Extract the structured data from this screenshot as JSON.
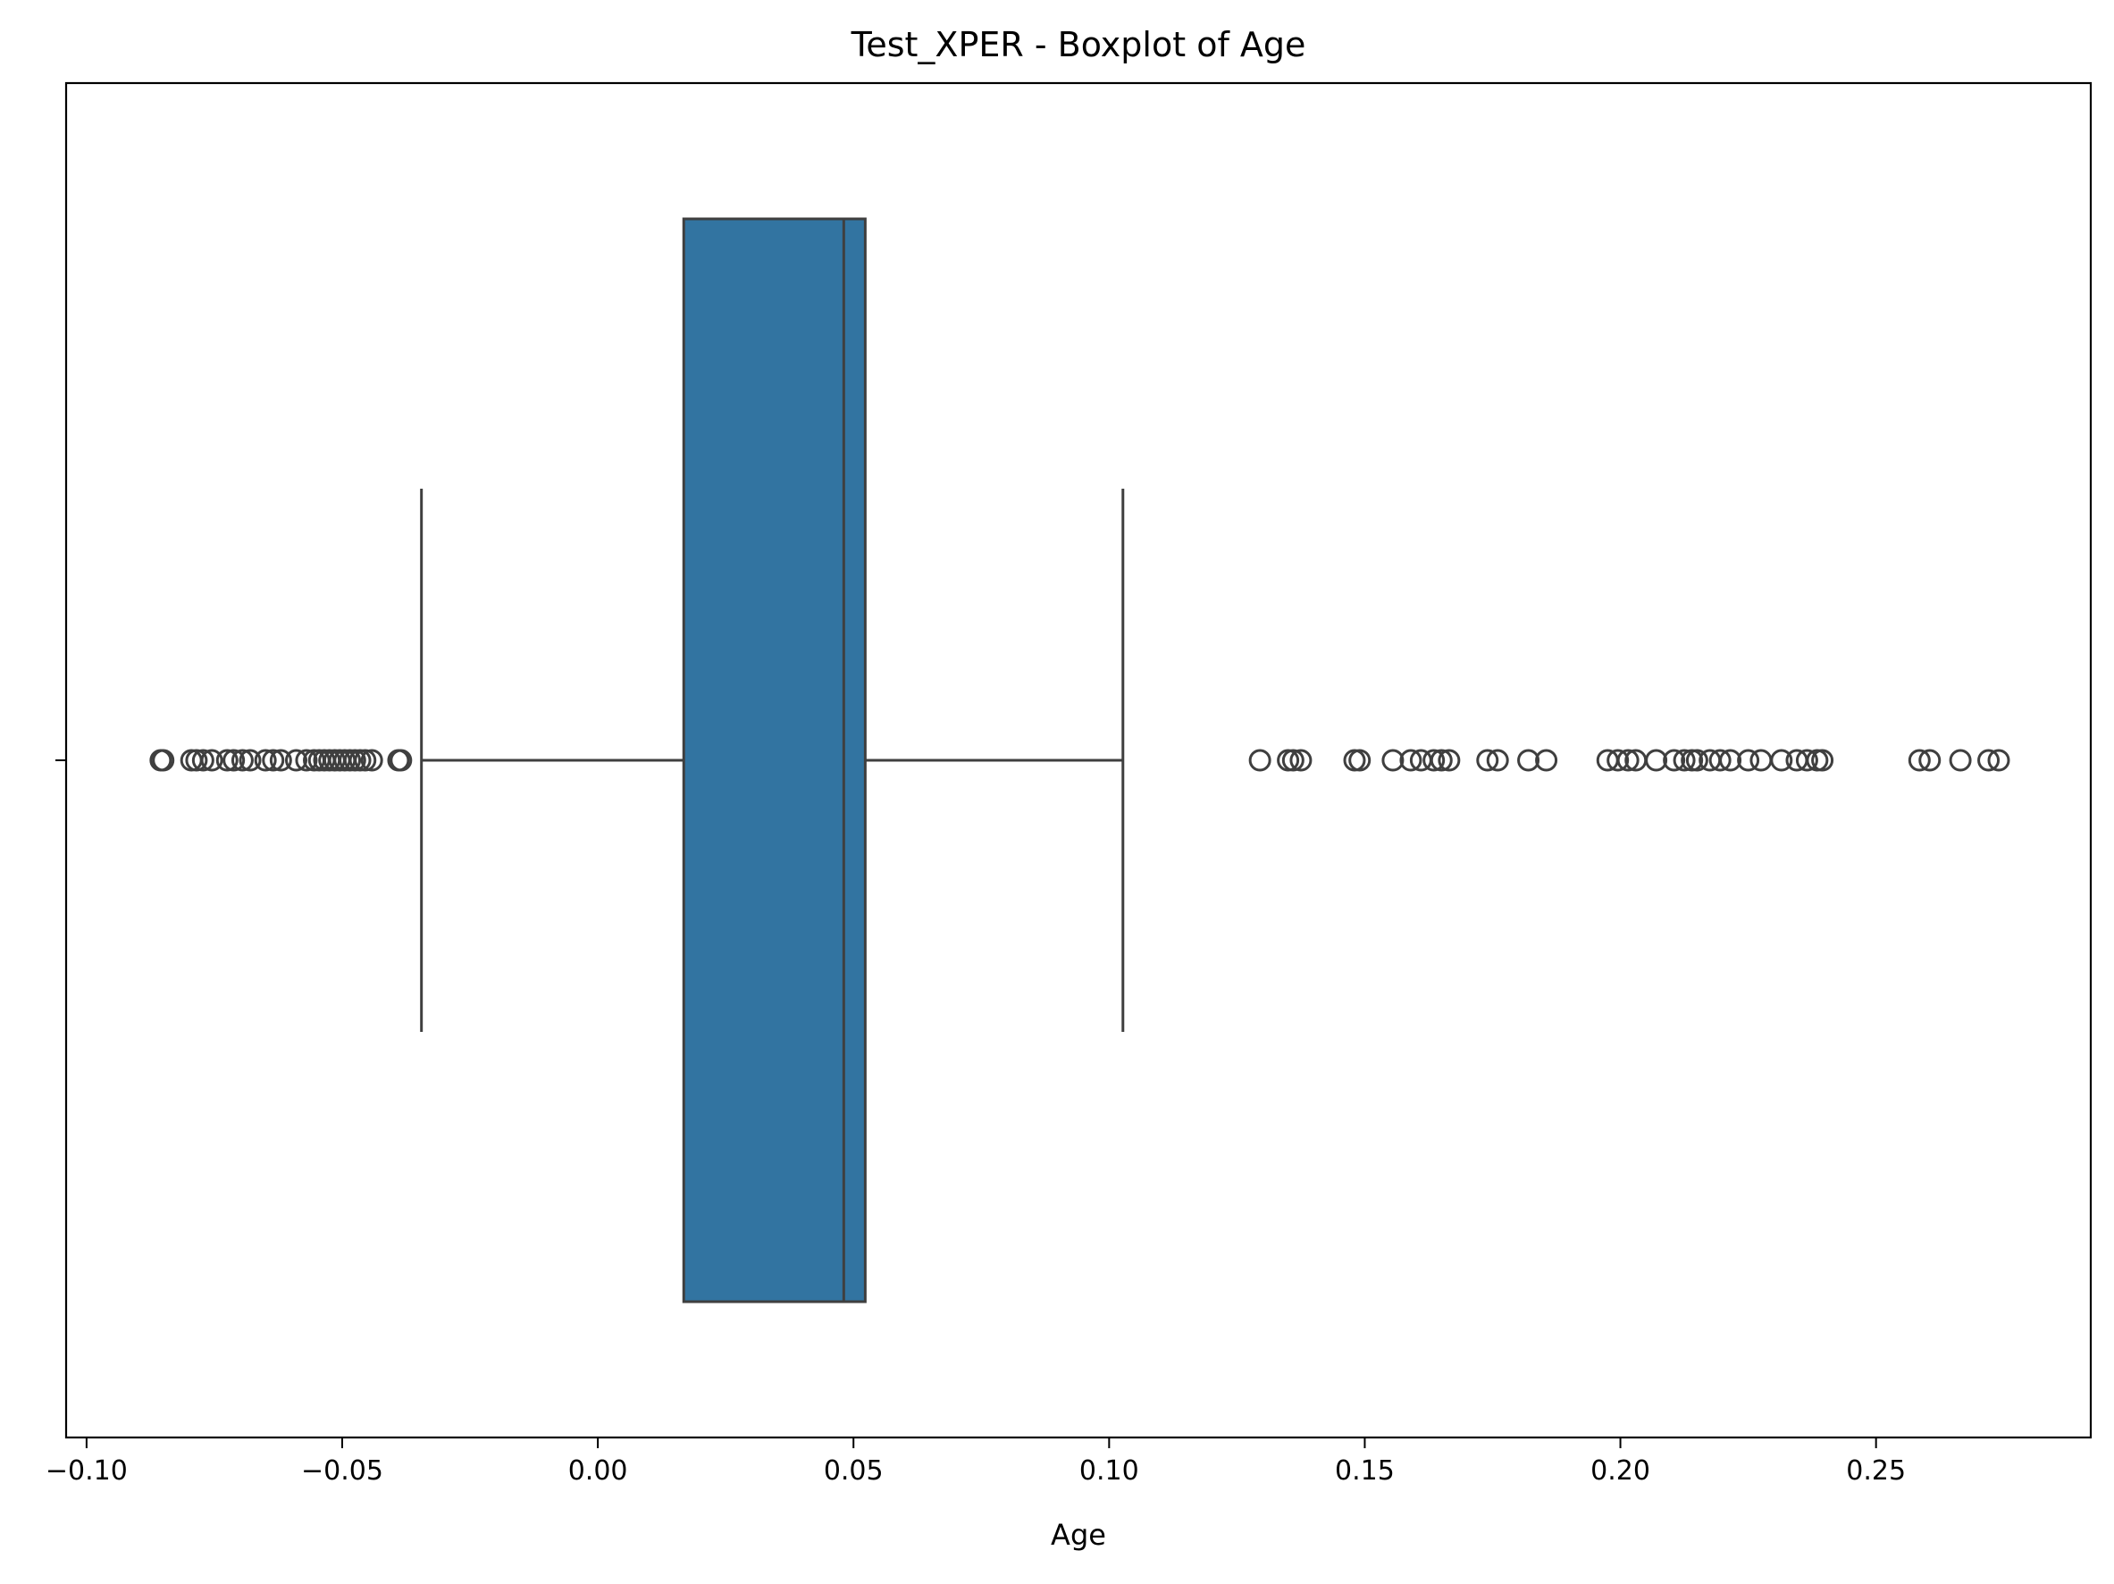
{
  "chart_data": {
    "type": "boxplot",
    "orientation": "horizontal",
    "title": "Test_XPER - Boxplot of Age",
    "xlabel": "Age",
    "ylabel": "",
    "xlim": [
      -0.104,
      0.292
    ],
    "x_ticks": [
      -0.1,
      -0.05,
      0.0,
      0.05,
      0.1,
      0.15,
      0.2,
      0.25
    ],
    "x_tick_labels": [
      "−0.10",
      "−0.05",
      "0.00",
      "0.05",
      "0.10",
      "0.15",
      "0.20",
      "0.25"
    ],
    "y_ticks": [
      ""
    ],
    "grid": false,
    "box_color": "#3274a1",
    "line_color": "#3f3f3f",
    "box": {
      "whisker_low": -0.0345,
      "q1": 0.0168,
      "median": 0.0481,
      "q3": 0.0523,
      "whisker_high": 0.1027
    },
    "outliers_low": [
      -0.0855,
      -0.085,
      -0.0795,
      -0.0785,
      -0.0772,
      -0.0755,
      -0.0725,
      -0.0712,
      -0.0695,
      -0.068,
      -0.065,
      -0.0635,
      -0.062,
      -0.059,
      -0.057,
      -0.0555,
      -0.0545,
      -0.0535,
      -0.0525,
      -0.0515,
      -0.0505,
      -0.0495,
      -0.0485,
      -0.0475,
      -0.0465,
      -0.0455,
      -0.0442,
      -0.039,
      -0.0385
    ],
    "outliers_high": [
      0.1295,
      0.135,
      0.136,
      0.1375,
      0.148,
      0.149,
      0.1555,
      0.159,
      0.161,
      0.1635,
      0.165,
      0.1665,
      0.174,
      0.176,
      0.182,
      0.1855,
      0.1975,
      0.1995,
      0.2015,
      0.203,
      0.207,
      0.2105,
      0.2125,
      0.214,
      0.215,
      0.2175,
      0.2195,
      0.2215,
      0.225,
      0.2275,
      0.2315,
      0.2345,
      0.2365,
      0.2385,
      0.2395,
      0.2585,
      0.2605,
      0.2665,
      0.272,
      0.274
    ]
  }
}
